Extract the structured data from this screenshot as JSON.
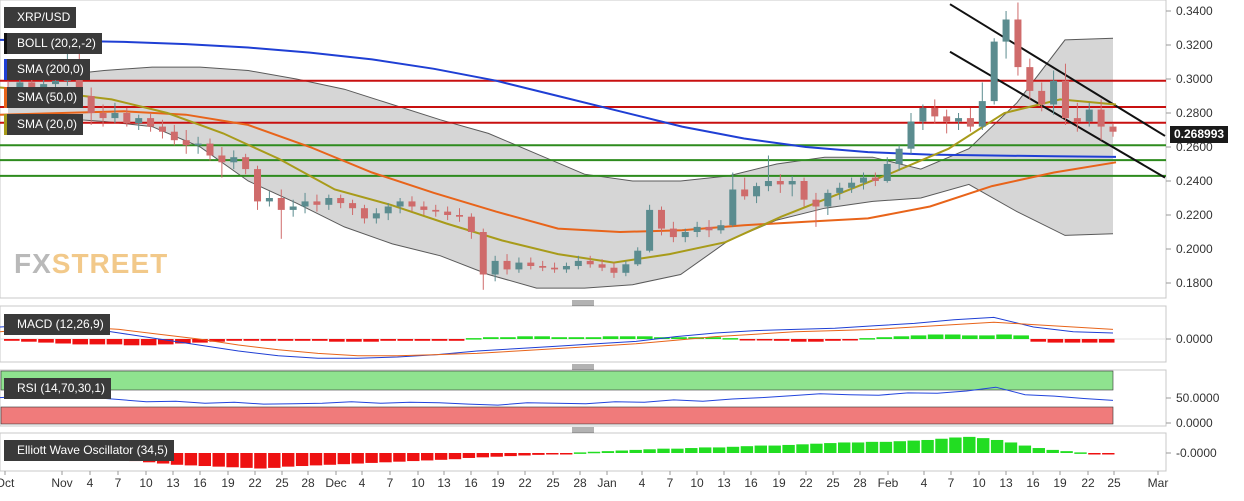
{
  "brand": {
    "fx": "FX",
    "street": "STREET"
  },
  "price_tag": "0.268993",
  "legends": {
    "pair": "XRP/USD",
    "boll": "BOLL (20,2,-2)",
    "sma200": "SMA (200,0)",
    "sma50": "SMA (50,0)",
    "sma20": "SMA (20,0)",
    "macd": "MACD (12,26,9)",
    "rsi": "RSI (14,70,30,1)",
    "ewo": "Elliott Wave Oscillator (34,5)"
  },
  "colors": {
    "up_candle": "#5b8c8f",
    "down_candle": "#cf6b6b",
    "sma200": "#1f3fd4",
    "sma50": "#e8641a",
    "sma20": "#a89b1a",
    "resistance": "#c81010",
    "support": "#2e8b1e",
    "trendline": "#111111",
    "macd_pos": "#22dd22",
    "macd_neg": "#ee1111",
    "rsi_line": "#2244dd",
    "rsi_overbought": "#8fe38f",
    "rsi_oversold": "#f07b7b"
  },
  "chart_data": [
    {
      "type": "candlestick",
      "title": "XRP/USD",
      "ylim": [
        0.17,
        0.35
      ],
      "y_ticks": [
        "0.3400",
        "0.3200",
        "0.3000",
        "0.2800",
        "0.2600",
        "0.2400",
        "0.2200",
        "0.2000",
        "0.1800"
      ],
      "x_tick_labels": [
        "Oct",
        "Nov",
        "4",
        "7",
        "10",
        "13",
        "16",
        "19",
        "22",
        "25",
        "28",
        "Dec",
        "4",
        "7",
        "10",
        "13",
        "16",
        "19",
        "22",
        "25",
        "28",
        "Jan",
        "4",
        "7",
        "10",
        "13",
        "16",
        "19",
        "22",
        "25",
        "28",
        "Feb",
        "4",
        "7",
        "10",
        "13",
        "16",
        "19",
        "22",
        "25",
        "Mar"
      ],
      "ohlc": [
        {
          "o": 0.295,
          "h": 0.299,
          "l": 0.287,
          "c": 0.294
        },
        {
          "o": 0.294,
          "h": 0.3,
          "l": 0.288,
          "c": 0.298
        },
        {
          "o": 0.298,
          "h": 0.302,
          "l": 0.288,
          "c": 0.292
        },
        {
          "o": 0.292,
          "h": 0.3,
          "l": 0.287,
          "c": 0.297
        },
        {
          "o": 0.297,
          "h": 0.302,
          "l": 0.292,
          "c": 0.299
        },
        {
          "o": 0.299,
          "h": 0.316,
          "l": 0.296,
          "c": 0.311
        },
        {
          "o": 0.311,
          "h": 0.315,
          "l": 0.285,
          "c": 0.29
        },
        {
          "o": 0.29,
          "h": 0.295,
          "l": 0.273,
          "c": 0.28
        },
        {
          "o": 0.28,
          "h": 0.285,
          "l": 0.272,
          "c": 0.277
        },
        {
          "o": 0.277,
          "h": 0.286,
          "l": 0.274,
          "c": 0.28
        },
        {
          "o": 0.28,
          "h": 0.283,
          "l": 0.272,
          "c": 0.274
        },
        {
          "o": 0.274,
          "h": 0.279,
          "l": 0.27,
          "c": 0.277
        },
        {
          "o": 0.277,
          "h": 0.28,
          "l": 0.269,
          "c": 0.272
        },
        {
          "o": 0.272,
          "h": 0.276,
          "l": 0.265,
          "c": 0.269
        },
        {
          "o": 0.269,
          "h": 0.273,
          "l": 0.261,
          "c": 0.264
        },
        {
          "o": 0.264,
          "h": 0.27,
          "l": 0.256,
          "c": 0.261
        },
        {
          "o": 0.261,
          "h": 0.266,
          "l": 0.256,
          "c": 0.262
        },
        {
          "o": 0.262,
          "h": 0.265,
          "l": 0.252,
          "c": 0.255
        },
        {
          "o": 0.255,
          "h": 0.26,
          "l": 0.242,
          "c": 0.251
        },
        {
          "o": 0.251,
          "h": 0.258,
          "l": 0.247,
          "c": 0.254
        },
        {
          "o": 0.254,
          "h": 0.256,
          "l": 0.244,
          "c": 0.247
        },
        {
          "o": 0.247,
          "h": 0.249,
          "l": 0.223,
          "c": 0.228
        },
        {
          "o": 0.228,
          "h": 0.234,
          "l": 0.225,
          "c": 0.23
        },
        {
          "o": 0.23,
          "h": 0.235,
          "l": 0.206,
          "c": 0.223
        },
        {
          "o": 0.223,
          "h": 0.229,
          "l": 0.219,
          "c": 0.225
        },
        {
          "o": 0.225,
          "h": 0.233,
          "l": 0.221,
          "c": 0.228
        },
        {
          "o": 0.228,
          "h": 0.232,
          "l": 0.222,
          "c": 0.226
        },
        {
          "o": 0.226,
          "h": 0.232,
          "l": 0.223,
          "c": 0.23
        },
        {
          "o": 0.23,
          "h": 0.232,
          "l": 0.224,
          "c": 0.227
        },
        {
          "o": 0.227,
          "h": 0.229,
          "l": 0.22,
          "c": 0.224
        },
        {
          "o": 0.224,
          "h": 0.226,
          "l": 0.215,
          "c": 0.218
        },
        {
          "o": 0.218,
          "h": 0.224,
          "l": 0.215,
          "c": 0.221
        },
        {
          "o": 0.221,
          "h": 0.227,
          "l": 0.217,
          "c": 0.225
        },
        {
          "o": 0.225,
          "h": 0.23,
          "l": 0.221,
          "c": 0.228
        },
        {
          "o": 0.228,
          "h": 0.231,
          "l": 0.222,
          "c": 0.225
        },
        {
          "o": 0.225,
          "h": 0.228,
          "l": 0.22,
          "c": 0.223
        },
        {
          "o": 0.223,
          "h": 0.226,
          "l": 0.219,
          "c": 0.222
        },
        {
          "o": 0.222,
          "h": 0.225,
          "l": 0.217,
          "c": 0.22
        },
        {
          "o": 0.22,
          "h": 0.224,
          "l": 0.216,
          "c": 0.219
        },
        {
          "o": 0.219,
          "h": 0.221,
          "l": 0.206,
          "c": 0.21
        },
        {
          "o": 0.21,
          "h": 0.212,
          "l": 0.176,
          "c": 0.185
        },
        {
          "o": 0.185,
          "h": 0.196,
          "l": 0.181,
          "c": 0.193
        },
        {
          "o": 0.193,
          "h": 0.197,
          "l": 0.185,
          "c": 0.188
        },
        {
          "o": 0.188,
          "h": 0.195,
          "l": 0.186,
          "c": 0.192
        },
        {
          "o": 0.192,
          "h": 0.195,
          "l": 0.188,
          "c": 0.19
        },
        {
          "o": 0.19,
          "h": 0.193,
          "l": 0.187,
          "c": 0.189
        },
        {
          "o": 0.189,
          "h": 0.192,
          "l": 0.186,
          "c": 0.188
        },
        {
          "o": 0.188,
          "h": 0.192,
          "l": 0.186,
          "c": 0.19
        },
        {
          "o": 0.19,
          "h": 0.196,
          "l": 0.188,
          "c": 0.193
        },
        {
          "o": 0.193,
          "h": 0.196,
          "l": 0.189,
          "c": 0.191
        },
        {
          "o": 0.191,
          "h": 0.194,
          "l": 0.187,
          "c": 0.189
        },
        {
          "o": 0.189,
          "h": 0.192,
          "l": 0.183,
          "c": 0.186
        },
        {
          "o": 0.186,
          "h": 0.193,
          "l": 0.184,
          "c": 0.191
        },
        {
          "o": 0.191,
          "h": 0.201,
          "l": 0.19,
          "c": 0.199
        },
        {
          "o": 0.199,
          "h": 0.226,
          "l": 0.198,
          "c": 0.223
        },
        {
          "o": 0.223,
          "h": 0.225,
          "l": 0.208,
          "c": 0.212
        },
        {
          "o": 0.212,
          "h": 0.216,
          "l": 0.204,
          "c": 0.207
        },
        {
          "o": 0.207,
          "h": 0.212,
          "l": 0.204,
          "c": 0.21
        },
        {
          "o": 0.21,
          "h": 0.216,
          "l": 0.207,
          "c": 0.213
        },
        {
          "o": 0.213,
          "h": 0.217,
          "l": 0.207,
          "c": 0.211
        },
        {
          "o": 0.211,
          "h": 0.217,
          "l": 0.209,
          "c": 0.214
        },
        {
          "o": 0.214,
          "h": 0.245,
          "l": 0.213,
          "c": 0.235
        },
        {
          "o": 0.235,
          "h": 0.242,
          "l": 0.229,
          "c": 0.231
        },
        {
          "o": 0.231,
          "h": 0.239,
          "l": 0.227,
          "c": 0.237
        },
        {
          "o": 0.237,
          "h": 0.255,
          "l": 0.234,
          "c": 0.24
        },
        {
          "o": 0.24,
          "h": 0.244,
          "l": 0.233,
          "c": 0.238
        },
        {
          "o": 0.238,
          "h": 0.243,
          "l": 0.231,
          "c": 0.24
        },
        {
          "o": 0.24,
          "h": 0.242,
          "l": 0.225,
          "c": 0.229
        },
        {
          "o": 0.229,
          "h": 0.233,
          "l": 0.213,
          "c": 0.225
        },
        {
          "o": 0.225,
          "h": 0.235,
          "l": 0.22,
          "c": 0.233
        },
        {
          "o": 0.233,
          "h": 0.239,
          "l": 0.229,
          "c": 0.236
        },
        {
          "o": 0.236,
          "h": 0.242,
          "l": 0.233,
          "c": 0.239
        },
        {
          "o": 0.239,
          "h": 0.245,
          "l": 0.235,
          "c": 0.242
        },
        {
          "o": 0.242,
          "h": 0.245,
          "l": 0.237,
          "c": 0.24
        },
        {
          "o": 0.24,
          "h": 0.254,
          "l": 0.239,
          "c": 0.25
        },
        {
          "o": 0.25,
          "h": 0.261,
          "l": 0.246,
          "c": 0.259
        },
        {
          "o": 0.259,
          "h": 0.28,
          "l": 0.256,
          "c": 0.275
        },
        {
          "o": 0.275,
          "h": 0.285,
          "l": 0.27,
          "c": 0.283
        },
        {
          "o": 0.283,
          "h": 0.288,
          "l": 0.274,
          "c": 0.278
        },
        {
          "o": 0.278,
          "h": 0.282,
          "l": 0.268,
          "c": 0.275
        },
        {
          "o": 0.275,
          "h": 0.28,
          "l": 0.27,
          "c": 0.277
        },
        {
          "o": 0.277,
          "h": 0.283,
          "l": 0.269,
          "c": 0.272
        },
        {
          "o": 0.272,
          "h": 0.298,
          "l": 0.27,
          "c": 0.287
        },
        {
          "o": 0.287,
          "h": 0.324,
          "l": 0.285,
          "c": 0.322
        },
        {
          "o": 0.322,
          "h": 0.34,
          "l": 0.312,
          "c": 0.335
        },
        {
          "o": 0.335,
          "h": 0.345,
          "l": 0.302,
          "c": 0.307
        },
        {
          "o": 0.307,
          "h": 0.312,
          "l": 0.288,
          "c": 0.293
        },
        {
          "o": 0.293,
          "h": 0.298,
          "l": 0.281,
          "c": 0.285
        },
        {
          "o": 0.285,
          "h": 0.305,
          "l": 0.279,
          "c": 0.299
        },
        {
          "o": 0.299,
          "h": 0.309,
          "l": 0.273,
          "c": 0.277
        },
        {
          "o": 0.277,
          "h": 0.286,
          "l": 0.269,
          "c": 0.275
        },
        {
          "o": 0.275,
          "h": 0.286,
          "l": 0.272,
          "c": 0.282
        },
        {
          "o": 0.282,
          "h": 0.288,
          "l": 0.264,
          "c": 0.272
        },
        {
          "o": 0.272,
          "h": 0.274,
          "l": 0.266,
          "c": 0.269
        }
      ],
      "bollinger": {
        "upper": [
          0.3,
          0.302,
          0.305,
          0.307,
          0.307,
          0.305,
          0.3,
          0.294,
          0.285,
          0.276,
          0.268,
          0.256,
          0.244,
          0.24,
          0.24,
          0.243,
          0.25,
          0.254,
          0.254,
          0.247,
          0.259,
          0.286,
          0.323,
          0.324
        ],
        "lower": [
          0.279,
          0.277,
          0.275,
          0.272,
          0.26,
          0.24,
          0.227,
          0.213,
          0.203,
          0.196,
          0.185,
          0.177,
          0.177,
          0.179,
          0.185,
          0.205,
          0.217,
          0.224,
          0.228,
          0.23,
          0.238,
          0.222,
          0.208,
          0.209
        ]
      },
      "lines": {
        "sma200": [
          0.323,
          0.3225,
          0.3218,
          0.3205,
          0.3185,
          0.3155,
          0.3115,
          0.306,
          0.299,
          0.29,
          0.281,
          0.272,
          0.265,
          0.26,
          0.257,
          0.2555,
          0.255,
          0.2545,
          0.2542
        ],
        "sma50": [
          0.279,
          0.28,
          0.281,
          0.279,
          0.273,
          0.26,
          0.245,
          0.233,
          0.222,
          0.212,
          0.21,
          0.211,
          0.214,
          0.216,
          0.218,
          0.225,
          0.237,
          0.245,
          0.251
        ],
        "sma20": [
          0.295,
          0.292,
          0.288,
          0.28,
          0.268,
          0.253,
          0.235,
          0.226,
          0.215,
          0.205,
          0.197,
          0.192,
          0.197,
          0.204,
          0.219,
          0.232,
          0.245,
          0.259,
          0.28,
          0.288,
          0.285
        ]
      },
      "levels": {
        "resistance": [
          0.299,
          0.2835,
          0.2743
        ],
        "support": [
          0.261,
          0.2523,
          0.243
        ]
      },
      "trendlines": [
        {
          "from": [
            0.344
          ],
          "to": [
            0.2665
          ]
        },
        {
          "from": [
            0.316
          ],
          "to": [
            0.242
          ]
        }
      ]
    },
    {
      "type": "bar",
      "title": "MACD (12,26,9)",
      "y_ticks": [
        "0.0000"
      ],
      "histogram": [
        -0.002,
        -0.003,
        -0.004,
        -0.005,
        -0.006,
        -0.006,
        -0.006,
        -0.007,
        -0.007,
        -0.006,
        -0.005,
        -0.004,
        -0.003,
        -0.002,
        -0.002,
        -0.002,
        -0.002,
        -0.002,
        -0.002,
        -0.003,
        -0.003,
        -0.003,
        -0.002,
        -0.002,
        -0.002,
        -0.002,
        -0.002,
        0.001,
        0.002,
        0.002,
        0.003,
        0.003,
        0.002,
        0.002,
        0.002,
        0.003,
        0.003,
        0.003,
        0.002,
        0.002,
        0.002,
        0.002,
        0.001,
        -0.001,
        -0.001,
        -0.002,
        -0.003,
        -0.003,
        -0.002,
        -0.001,
        0.001,
        0.002,
        0.003,
        0.004,
        0.005,
        0.005,
        0.004,
        0.004,
        0.005,
        0.004,
        -0.003,
        -0.004,
        -0.004,
        -0.004,
        -0.004
      ],
      "series": [
        {
          "values": [
            0.01,
            0.012,
            0.01,
            0.005,
            0.0,
            -0.005,
            -0.01,
            -0.014,
            -0.016,
            -0.016,
            -0.015,
            -0.013,
            -0.01,
            -0.008,
            -0.006,
            -0.004,
            -0.002,
            0.002,
            0.005,
            0.007,
            0.008,
            0.009,
            0.011,
            0.013,
            0.016,
            0.018,
            0.01,
            0.006,
            0.005
          ]
        },
        {
          "values": [
            0.006,
            0.009,
            0.01,
            0.008,
            0.004,
            0.0,
            -0.005,
            -0.009,
            -0.012,
            -0.014,
            -0.014,
            -0.013,
            -0.012,
            -0.01,
            -0.008,
            -0.006,
            -0.004,
            -0.001,
            0.002,
            0.004,
            0.006,
            0.007,
            0.008,
            0.01,
            0.012,
            0.014,
            0.012,
            0.01,
            0.008
          ]
        }
      ]
    },
    {
      "type": "line",
      "title": "RSI (14,70,30,1)",
      "y_ticks": [
        "50.0000",
        "0.0000"
      ],
      "values": [
        52,
        55,
        50,
        53,
        48,
        43,
        44,
        40,
        42,
        38,
        39,
        40,
        43,
        40,
        42,
        41,
        38,
        36,
        41,
        40,
        39,
        43,
        42,
        47,
        44,
        49,
        52,
        56,
        60,
        58,
        57,
        62,
        61,
        66,
        74,
        58,
        55,
        50,
        46
      ]
    },
    {
      "type": "bar",
      "title": "Elliott Wave Oscillator (34,5)",
      "y_ticks": [
        "-0.0000"
      ],
      "values": [
        -0.002,
        -0.002,
        -0.003,
        -0.004,
        -0.005,
        -0.006,
        -0.007,
        -0.009,
        -0.011,
        -0.013,
        -0.015,
        -0.017,
        -0.019,
        -0.02,
        -0.021,
        -0.022,
        -0.023,
        -0.024,
        -0.025,
        -0.024,
        -0.022,
        -0.021,
        -0.02,
        -0.019,
        -0.018,
        -0.017,
        -0.016,
        -0.015,
        -0.014,
        -0.013,
        -0.012,
        -0.011,
        -0.01,
        -0.008,
        -0.007,
        -0.006,
        -0.005,
        -0.004,
        -0.003,
        -0.002,
        -0.001,
        0.001,
        0.002,
        0.003,
        0.004,
        0.005,
        0.006,
        0.007,
        0.007,
        0.008,
        0.009,
        0.009,
        0.01,
        0.011,
        0.012,
        0.012,
        0.013,
        0.014,
        0.015,
        0.016,
        0.017,
        0.017,
        0.018,
        0.018,
        0.019,
        0.02,
        0.021,
        0.023,
        0.025,
        0.026,
        0.024,
        0.021,
        0.017,
        0.012,
        0.008,
        0.005,
        0.003,
        0.001,
        -0.001,
        -0.002
      ]
    }
  ]
}
